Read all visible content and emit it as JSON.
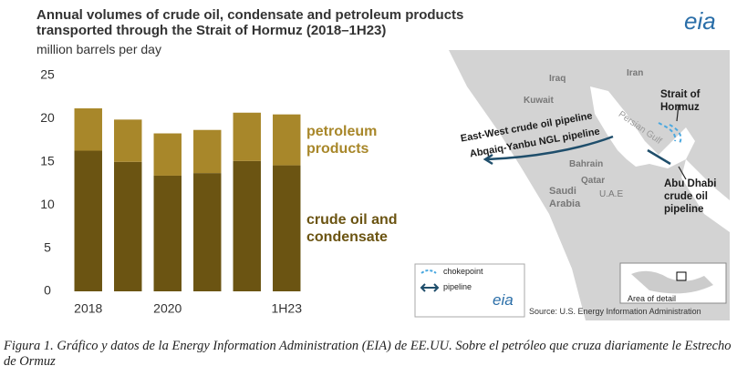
{
  "chart_data": {
    "type": "bar",
    "stacked": true,
    "title": "Annual volumes of crude oil, condensate and petroleum products transported through the Strait of Hormuz (2018–1H23)",
    "subtitle": "million barrels per day",
    "categories": [
      "2018",
      null,
      "2020",
      null,
      null,
      "1H23"
    ],
    "series": [
      {
        "name": "crude oil and condensate",
        "color": "#6b5412",
        "values": [
          16.3,
          15.0,
          13.4,
          13.7,
          15.1,
          14.6
        ]
      },
      {
        "name": "petroleum products",
        "color": "#a8872a",
        "values": [
          4.9,
          4.9,
          4.9,
          5.0,
          5.6,
          5.9
        ]
      }
    ],
    "ylim": [
      0,
      25
    ],
    "yticks": [
      0,
      5,
      10,
      15,
      20,
      25
    ],
    "grid": false
  },
  "logo": "eia",
  "map": {
    "labels": [
      "Iraq",
      "Iran",
      "Kuwait",
      "Persian Gulf",
      "East-West crude oil pipeline",
      "Abqaiq-Yanbu NGL pipeline",
      "Bahrain",
      "Qatar",
      "U.A.E",
      "Saudi Arabia",
      "Strait of Hormuz",
      "Abu Dhabi crude oil pipeline"
    ],
    "legend": [
      "chokepoint",
      "pipeline"
    ],
    "inset_label": "Area of detail",
    "source": "Source: U.S. Energy Information Administration"
  },
  "caption": "Figura 1. Gráfico y datos de la Energy Information Administration (EIA) de EE.UU. Sobre el petróleo que cruza diariamente le Estrecho de Ormuz"
}
